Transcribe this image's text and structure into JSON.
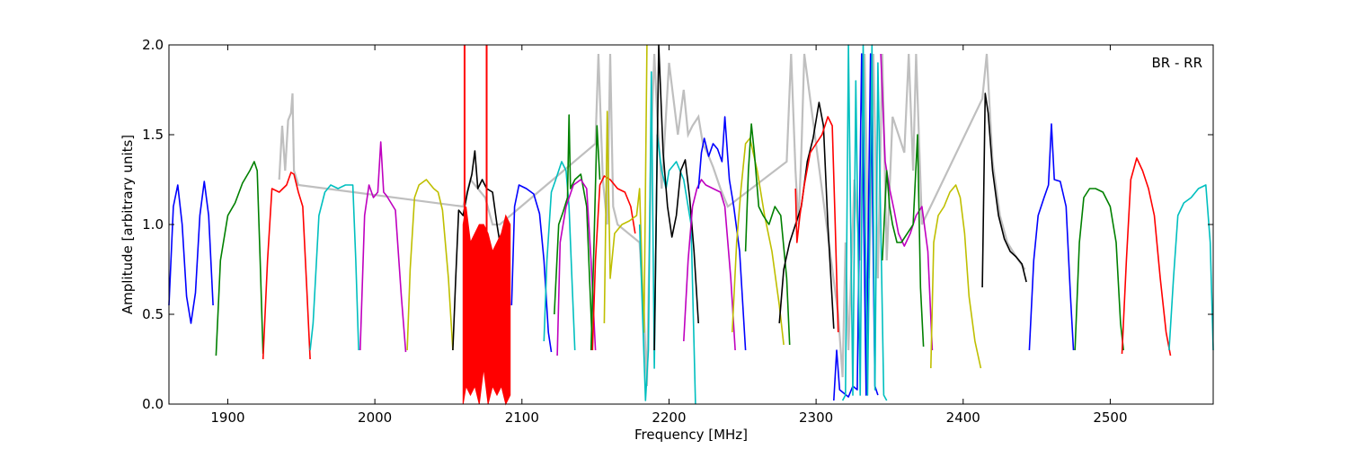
{
  "chart_data": {
    "type": "line",
    "title": "",
    "annotation": "BR - RR",
    "xlabel": "Frequency [MHz]",
    "ylabel": "Amplitude [arbitrary units]",
    "xlim": [
      1860,
      2570
    ],
    "ylim": [
      0.0,
      2.0
    ],
    "xticks": [
      1900,
      2000,
      2100,
      2200,
      2300,
      2400,
      2500
    ],
    "xtick_labels": [
      "1900",
      "2000",
      "2100",
      "2200",
      "2300",
      "2400",
      "2500"
    ],
    "yticks": [
      0.0,
      0.5,
      1.0,
      1.5,
      2.0
    ],
    "ytick_labels": [
      "0.0",
      "0.5",
      "1.0",
      "1.5",
      "2.0"
    ],
    "grid": false,
    "background_trace": {
      "color": "#bfbfbf",
      "points": [
        [
          1935,
          1.25
        ],
        [
          1937,
          1.55
        ],
        [
          1939,
          1.3
        ],
        [
          1941,
          1.58
        ],
        [
          1943,
          1.62
        ],
        [
          1944,
          1.73
        ],
        [
          1945,
          1.3
        ],
        [
          1948,
          1.22
        ],
        [
          2060,
          1.1
        ],
        [
          2065,
          1.25
        ],
        [
          2070,
          1.2
        ],
        [
          2075,
          1.15
        ],
        [
          2080,
          1.0
        ],
        [
          2085,
          1.0
        ],
        [
          2150,
          1.45
        ],
        [
          2152,
          1.95
        ],
        [
          2155,
          1.25
        ],
        [
          2158,
          1.0
        ],
        [
          2160,
          1.95
        ],
        [
          2162,
          1.1
        ],
        [
          2165,
          1.0
        ],
        [
          2180,
          0.9
        ],
        [
          2183,
          0.5
        ],
        [
          2185,
          0.1
        ],
        [
          2188,
          1.5
        ],
        [
          2190,
          1.95
        ],
        [
          2192,
          1.6
        ],
        [
          2195,
          1.2
        ],
        [
          2200,
          1.9
        ],
        [
          2203,
          1.7
        ],
        [
          2206,
          1.5
        ],
        [
          2210,
          1.75
        ],
        [
          2213,
          1.5
        ],
        [
          2216,
          1.55
        ],
        [
          2220,
          1.6
        ],
        [
          2223,
          1.45
        ],
        [
          2226,
          1.4
        ],
        [
          2230,
          1.32
        ],
        [
          2235,
          1.2
        ],
        [
          2240,
          1.1
        ],
        [
          2280,
          1.35
        ],
        [
          2283,
          1.95
        ],
        [
          2286,
          1.3
        ],
        [
          2288,
          1.0
        ],
        [
          2290,
          1.4
        ],
        [
          2292,
          1.95
        ],
        [
          2315,
          0.5
        ],
        [
          2318,
          0.15
        ],
        [
          2320,
          0.9
        ],
        [
          2322,
          0.3
        ],
        [
          2326,
          1.25
        ],
        [
          2330,
          0.8
        ],
        [
          2333,
          1.95
        ],
        [
          2336,
          0.7
        ],
        [
          2339,
          1.95
        ],
        [
          2342,
          0.7
        ],
        [
          2345,
          1.95
        ],
        [
          2348,
          0.8
        ],
        [
          2352,
          1.6
        ],
        [
          2356,
          1.5
        ],
        [
          2360,
          1.4
        ],
        [
          2363,
          1.95
        ],
        [
          2366,
          1.3
        ],
        [
          2368,
          1.95
        ],
        [
          2372,
          1.0
        ],
        [
          2413,
          1.7
        ],
        [
          2416,
          1.95
        ],
        [
          2420,
          1.35
        ],
        [
          2425,
          1.05
        ],
        [
          2430,
          0.9
        ],
        [
          2436,
          0.82
        ],
        [
          2442,
          0.75
        ]
      ]
    },
    "series": [
      {
        "color": "#0000ff",
        "x": [
          1860,
          1863,
          1866,
          1869,
          1872,
          1875,
          1878,
          1881,
          1884,
          1887,
          1890
        ],
        "y": [
          0.55,
          1.1,
          1.22,
          1.0,
          0.6,
          0.45,
          0.62,
          1.05,
          1.24,
          1.05,
          0.55
        ]
      },
      {
        "color": "#008000",
        "x": [
          1892,
          1895,
          1900,
          1905,
          1910,
          1915,
          1918,
          1920,
          1922,
          1924
        ],
        "y": [
          0.27,
          0.8,
          1.05,
          1.12,
          1.23,
          1.3,
          1.35,
          1.3,
          0.8,
          0.28
        ]
      },
      {
        "color": "#ff0000",
        "x": [
          1924,
          1927,
          1930,
          1935,
          1940,
          1943,
          1945,
          1948,
          1951,
          1954,
          1956
        ],
        "y": [
          0.25,
          0.8,
          1.2,
          1.18,
          1.22,
          1.29,
          1.28,
          1.18,
          1.1,
          0.6,
          0.25
        ]
      },
      {
        "color": "#00bfbf",
        "x": [
          1956,
          1958,
          1962,
          1966,
          1970,
          1975,
          1980,
          1985,
          1987,
          1989
        ],
        "y": [
          0.3,
          0.45,
          1.05,
          1.18,
          1.22,
          1.2,
          1.22,
          1.22,
          0.8,
          0.3
        ]
      },
      {
        "color": "#bf00bf",
        "x": [
          1990,
          1993,
          1996,
          1999,
          2002,
          2004,
          2006,
          2008,
          2011,
          2014,
          2018,
          2021
        ],
        "y": [
          0.3,
          1.05,
          1.22,
          1.15,
          1.18,
          1.46,
          1.18,
          1.16,
          1.12,
          1.08,
          0.6,
          0.29
        ]
      },
      {
        "color": "#bfbf00",
        "x": [
          2022,
          2024,
          2027,
          2030,
          2035,
          2040,
          2043,
          2046,
          2050,
          2053
        ],
        "y": [
          0.3,
          0.75,
          1.15,
          1.22,
          1.25,
          1.2,
          1.18,
          1.08,
          0.7,
          0.3
        ]
      },
      {
        "color": "#000000",
        "x": [
          2053,
          2055,
          2057,
          2060,
          2063,
          2066,
          2068,
          2070,
          2073,
          2076,
          2080,
          2083,
          2085
        ],
        "y": [
          0.3,
          0.7,
          1.08,
          1.05,
          1.18,
          1.28,
          1.41,
          1.2,
          1.25,
          1.2,
          1.18,
          1.0,
          0.9
        ]
      },
      {
        "color": "#ff0000",
        "fill": true,
        "x": [
          2060,
          2062,
          2065,
          2068,
          2071,
          2074,
          2077,
          2080,
          2083,
          2086,
          2089,
          2092
        ],
        "ylow": [
          0.0,
          0.1,
          0.05,
          0.1,
          0.0,
          0.2,
          0.0,
          0.1,
          0.05,
          0.1,
          0.0,
          0.05
        ],
        "yhigh": [
          1.0,
          1.1,
          0.9,
          0.95,
          1.0,
          1.0,
          0.95,
          0.85,
          0.9,
          0.95,
          1.05,
          1.0
        ],
        "spikes": [
          [
            2061,
            2.0
          ],
          [
            2076,
            2.0
          ]
        ]
      },
      {
        "color": "#0000ff",
        "x": [
          2093,
          2095,
          2098,
          2103,
          2108,
          2112,
          2115,
          2118,
          2120
        ],
        "y": [
          0.55,
          1.1,
          1.22,
          1.2,
          1.17,
          1.06,
          0.8,
          0.4,
          0.29
        ]
      },
      {
        "color": "#00bfbf",
        "x": [
          2115,
          2117,
          2120,
          2123,
          2127,
          2130,
          2132,
          2134,
          2136
        ],
        "y": [
          0.35,
          0.8,
          1.18,
          1.25,
          1.35,
          1.3,
          1.1,
          0.7,
          0.3
        ]
      },
      {
        "color": "#008000",
        "x": [
          2122,
          2125,
          2128,
          2131,
          2132,
          2133,
          2136,
          2140,
          2144,
          2148
        ],
        "y": [
          0.5,
          1.0,
          1.07,
          1.15,
          1.61,
          1.2,
          1.25,
          1.28,
          1.1,
          0.3
        ]
      },
      {
        "color": "#bf00bf",
        "x": [
          2124,
          2126,
          2130,
          2135,
          2140,
          2144,
          2147,
          2150
        ],
        "y": [
          0.27,
          0.9,
          1.1,
          1.22,
          1.25,
          1.2,
          0.8,
          0.3
        ]
      },
      {
        "color": "#ff0000",
        "x": [
          2148,
          2150,
          2153,
          2156,
          2160,
          2165,
          2170,
          2174,
          2177
        ],
        "y": [
          0.3,
          0.8,
          1.22,
          1.27,
          1.25,
          1.2,
          1.18,
          1.1,
          0.95
        ]
      },
      {
        "color": "#008000",
        "x": [
          2147,
          2149,
          2151,
          2153
        ],
        "y": [
          0.3,
          0.9,
          1.55,
          1.25
        ]
      },
      {
        "color": "#bfbf00",
        "x": [
          2156,
          2158,
          2160,
          2163,
          2168,
          2173,
          2178,
          2180,
          2183,
          2185
        ],
        "y": [
          0.45,
          1.63,
          0.7,
          0.95,
          1.0,
          1.02,
          1.05,
          1.2,
          0.4,
          2.0
        ]
      },
      {
        "color": "#00bfbf",
        "x": [
          2180,
          2182,
          2184,
          2186,
          2188,
          2190,
          2192,
          2195,
          2198,
          2200,
          2205,
          2210,
          2215,
          2218
        ],
        "y": [
          1.0,
          0.5,
          0.02,
          0.3,
          1.85,
          0.2,
          1.5,
          1.3,
          1.2,
          1.3,
          1.35,
          1.25,
          1.0,
          0.0
        ]
      },
      {
        "color": "#000000",
        "x": [
          2190,
          2193,
          2196,
          2199,
          2202,
          2205,
          2208,
          2211,
          2214,
          2217,
          2220
        ],
        "y": [
          0.3,
          2.0,
          1.4,
          1.1,
          0.93,
          1.05,
          1.3,
          1.36,
          1.15,
          0.85,
          0.45
        ]
      },
      {
        "color": "#bf00bf",
        "x": [
          2210,
          2213,
          2216,
          2219,
          2222,
          2225,
          2230,
          2235,
          2238,
          2242,
          2245
        ],
        "y": [
          0.35,
          0.8,
          1.1,
          1.2,
          1.25,
          1.22,
          1.2,
          1.18,
          1.1,
          0.7,
          0.3
        ]
      },
      {
        "color": "#0000ff",
        "x": [
          2220,
          2222,
          2224,
          2227,
          2230,
          2233,
          2236,
          2238,
          2241,
          2244,
          2248,
          2252
        ],
        "y": [
          1.2,
          1.4,
          1.48,
          1.38,
          1.45,
          1.42,
          1.35,
          1.6,
          1.25,
          1.1,
          0.85,
          0.3
        ]
      },
      {
        "color": "#bfbf00",
        "x": [
          2243,
          2246,
          2249,
          2252,
          2255,
          2260,
          2265,
          2270,
          2275,
          2278
        ],
        "y": [
          0.4,
          0.9,
          1.2,
          1.45,
          1.48,
          1.3,
          1.05,
          0.85,
          0.55,
          0.33
        ]
      },
      {
        "color": "#008000",
        "x": [
          2252,
          2254,
          2256,
          2258,
          2261,
          2264,
          2268,
          2272,
          2276,
          2280,
          2282
        ],
        "y": [
          0.85,
          1.3,
          1.56,
          1.4,
          1.1,
          1.05,
          1.0,
          1.1,
          1.05,
          0.7,
          0.33
        ]
      },
      {
        "color": "#000000",
        "x": [
          2275,
          2278,
          2282,
          2286,
          2290,
          2294,
          2298,
          2302,
          2305,
          2308,
          2312
        ],
        "y": [
          0.45,
          0.75,
          0.9,
          1.0,
          1.1,
          1.35,
          1.48,
          1.68,
          1.55,
          1.0,
          0.42
        ]
      },
      {
        "color": "#ff0000",
        "x": [
          2286,
          2287,
          2289,
          2292,
          2296,
          2300,
          2304,
          2308,
          2311,
          2313,
          2315
        ],
        "y": [
          1.2,
          0.9,
          1.05,
          1.22,
          1.4,
          1.45,
          1.5,
          1.6,
          1.55,
          1.0,
          0.4
        ]
      },
      {
        "color": "#0000ff",
        "x": [
          2312,
          2314,
          2316,
          2319,
          2322,
          2325,
          2328,
          2331,
          2334,
          2337,
          2340,
          2342
        ],
        "y": [
          0.02,
          0.3,
          0.08,
          0.06,
          0.04,
          0.1,
          0.08,
          1.95,
          0.05,
          1.95,
          0.1,
          0.05
        ]
      },
      {
        "color": "#00bfbf",
        "x": [
          2318,
          2320,
          2322,
          2325,
          2327,
          2330,
          2332,
          2335,
          2338,
          2340,
          2342,
          2346,
          2348
        ],
        "y": [
          0.02,
          0.05,
          2.0,
          0.05,
          1.8,
          0.05,
          2.0,
          0.05,
          2.0,
          0.08,
          1.9,
          0.05,
          0.02
        ]
      },
      {
        "color": "#bf00bf",
        "x": [
          2344,
          2347,
          2350,
          2353,
          2356,
          2360,
          2364,
          2368,
          2372,
          2376,
          2379
        ],
        "y": [
          1.95,
          1.35,
          1.2,
          1.08,
          0.95,
          0.88,
          0.95,
          1.05,
          1.1,
          0.85,
          0.3
        ]
      },
      {
        "color": "#008000",
        "x": [
          2345,
          2348,
          2350,
          2352,
          2355,
          2358,
          2362,
          2366,
          2369,
          2371,
          2373
        ],
        "y": [
          0.8,
          1.3,
          1.1,
          1.0,
          0.9,
          0.9,
          0.95,
          1.0,
          1.5,
          0.65,
          0.32
        ]
      },
      {
        "color": "#bfbf00",
        "x": [
          2378,
          2380,
          2383,
          2387,
          2391,
          2395,
          2398,
          2401,
          2404,
          2408,
          2412
        ],
        "y": [
          0.2,
          0.9,
          1.05,
          1.1,
          1.18,
          1.22,
          1.15,
          0.95,
          0.6,
          0.35,
          0.2
        ]
      },
      {
        "color": "#000000",
        "x": [
          2413,
          2415,
          2417,
          2420,
          2424,
          2428,
          2432,
          2436,
          2440,
          2443
        ],
        "y": [
          0.65,
          1.73,
          1.62,
          1.3,
          1.05,
          0.92,
          0.85,
          0.82,
          0.78,
          0.68
        ]
      },
      {
        "color": "#0000ff",
        "x": [
          2445,
          2448,
          2451,
          2455,
          2458,
          2460,
          2462,
          2466,
          2470,
          2473,
          2475
        ],
        "y": [
          0.3,
          0.8,
          1.05,
          1.15,
          1.22,
          1.56,
          1.25,
          1.24,
          1.1,
          0.6,
          0.3
        ]
      },
      {
        "color": "#008000",
        "x": [
          2476,
          2479,
          2482,
          2486,
          2490,
          2495,
          2500,
          2504,
          2507,
          2509
        ],
        "y": [
          0.3,
          0.9,
          1.15,
          1.2,
          1.2,
          1.18,
          1.1,
          0.9,
          0.45,
          0.3
        ]
      },
      {
        "color": "#ff0000",
        "x": [
          2508,
          2511,
          2514,
          2518,
          2522,
          2526,
          2530,
          2534,
          2538,
          2541
        ],
        "y": [
          0.28,
          0.8,
          1.25,
          1.37,
          1.3,
          1.2,
          1.05,
          0.7,
          0.4,
          0.27
        ]
      },
      {
        "color": "#00bfbf",
        "x": [
          2540,
          2543,
          2546,
          2550,
          2555,
          2560,
          2565,
          2568,
          2570
        ],
        "y": [
          0.3,
          0.7,
          1.05,
          1.12,
          1.15,
          1.2,
          1.22,
          0.9,
          0.3
        ]
      }
    ]
  }
}
